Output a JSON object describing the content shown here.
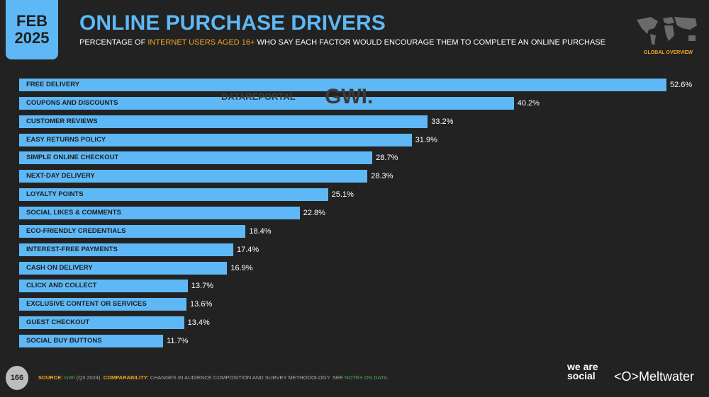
{
  "header": {
    "month": "FEB",
    "year": "2025",
    "title": "ONLINE PURCHASE DRIVERS",
    "subtitle_pre": "PERCENTAGE OF ",
    "subtitle_highlight": "INTERNET USERS AGED 16+",
    "subtitle_post": " WHO SAY EACH FACTOR WOULD ENCOURAGE THEM TO COMPLETE AN ONLINE PURCHASE",
    "global_tag": "GLOBAL OVERVIEW"
  },
  "watermark": {
    "datareportal": "DATAREPORTAL",
    "gwi": "GWI."
  },
  "chart_data": {
    "type": "bar",
    "orientation": "horizontal",
    "unit": "%",
    "bar_color": "#5eb8f5",
    "categories": [
      "FREE DELIVERY",
      "COUPONS AND DISCOUNTS",
      "CUSTOMER REVIEWS",
      "EASY RETURNS POLICY",
      "SIMPLE ONLINE CHECKOUT",
      "NEXT-DAY DELIVERY",
      "LOYALTY POINTS",
      "SOCIAL LIKES & COMMENTS",
      "ECO-FRIENDLY CREDENTIALS",
      "INTEREST-FREE PAYMENTS",
      "CASH ON DELIVERY",
      "CLICK AND COLLECT",
      "EXCLUSIVE CONTENT OR SERVICES",
      "GUEST CHECKOUT",
      "SOCIAL BUY BUTTONS"
    ],
    "values": [
      52.6,
      40.2,
      33.2,
      31.9,
      28.7,
      28.3,
      25.1,
      22.8,
      18.4,
      17.4,
      16.9,
      13.7,
      13.6,
      13.4,
      11.7
    ],
    "labels": [
      "52.6%",
      "40.2%",
      "33.2%",
      "31.9%",
      "28.7%",
      "28.3%",
      "25.1%",
      "22.8%",
      "18.4%",
      "17.4%",
      "16.9%",
      "13.7%",
      "13.6%",
      "13.4%",
      "11.7%"
    ]
  },
  "footer": {
    "page": "166",
    "source_label": "SOURCE:",
    "source_name": "GWI",
    "source_detail": " (Q3 2024). ",
    "comp_label": "COMPARABILITY:",
    "comp_text": " CHANGES IN AUDIENCE COMPOSITION AND SURVEY METHODOLOGY. SEE ",
    "notes_link": "NOTES ON DATA",
    "period": ".",
    "brand1": "we are social",
    "brand2": "Meltwater"
  }
}
